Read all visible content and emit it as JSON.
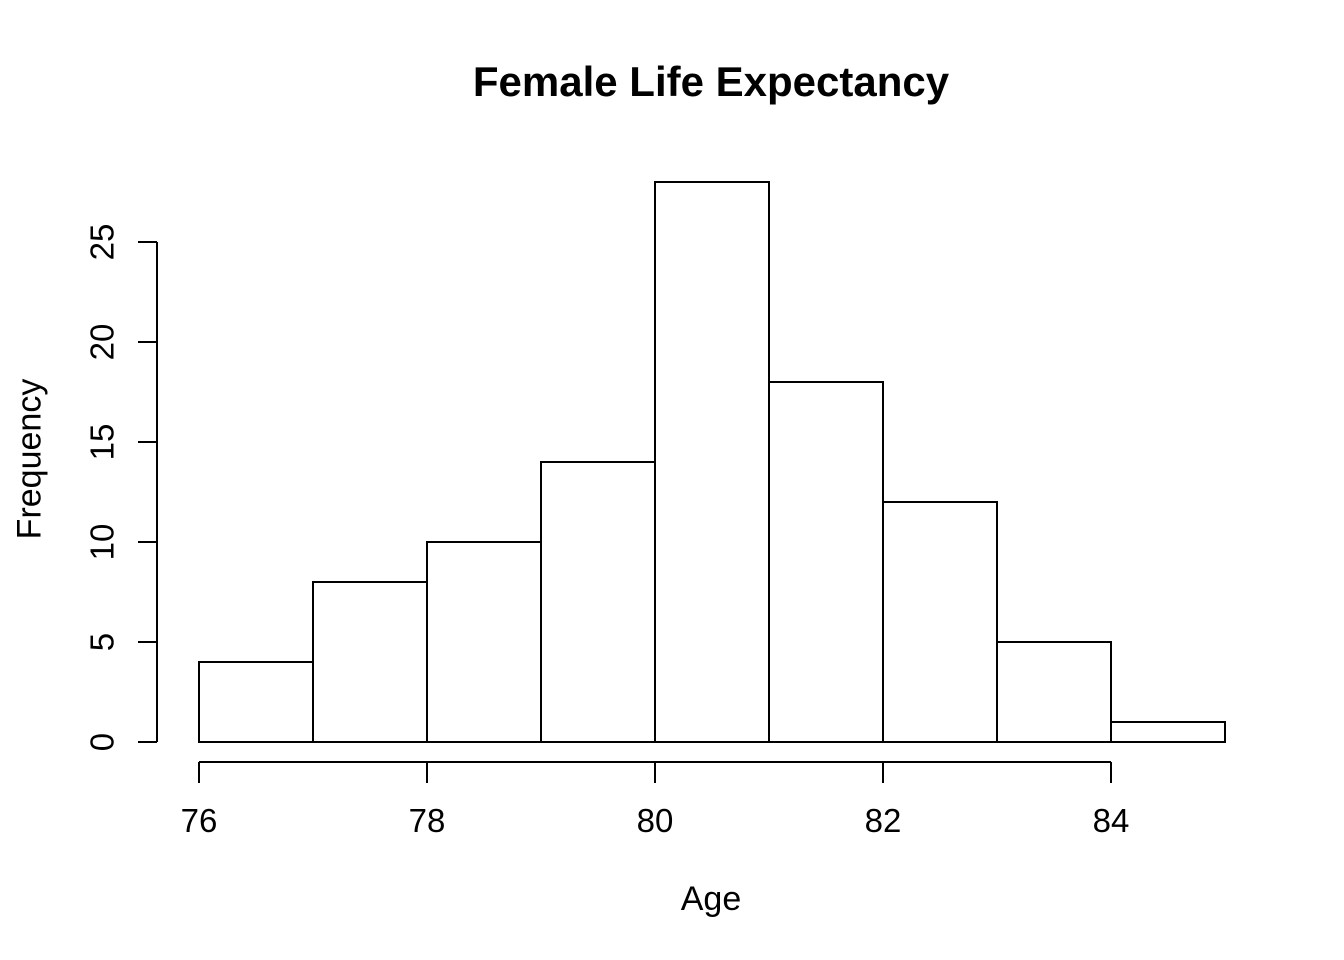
{
  "chart_data": {
    "type": "bar",
    "subtype": "histogram",
    "title": "Female Life Expectancy",
    "xlabel": "Age",
    "ylabel": "Frequency",
    "bin_edges": [
      76,
      77,
      78,
      79,
      80,
      81,
      82,
      83,
      84,
      85
    ],
    "values": [
      4,
      8,
      10,
      14,
      28,
      18,
      12,
      5,
      1
    ],
    "x_ticks": [
      76,
      78,
      80,
      82,
      84
    ],
    "y_ticks": [
      0,
      5,
      10,
      15,
      20,
      25
    ],
    "xlim": [
      76,
      85
    ],
    "ylim": [
      0,
      28
    ],
    "grid": false,
    "legend": false,
    "colors": {
      "bar_fill": "#ffffff",
      "stroke": "#000000",
      "text": "#000000",
      "background": "#ffffff"
    }
  }
}
